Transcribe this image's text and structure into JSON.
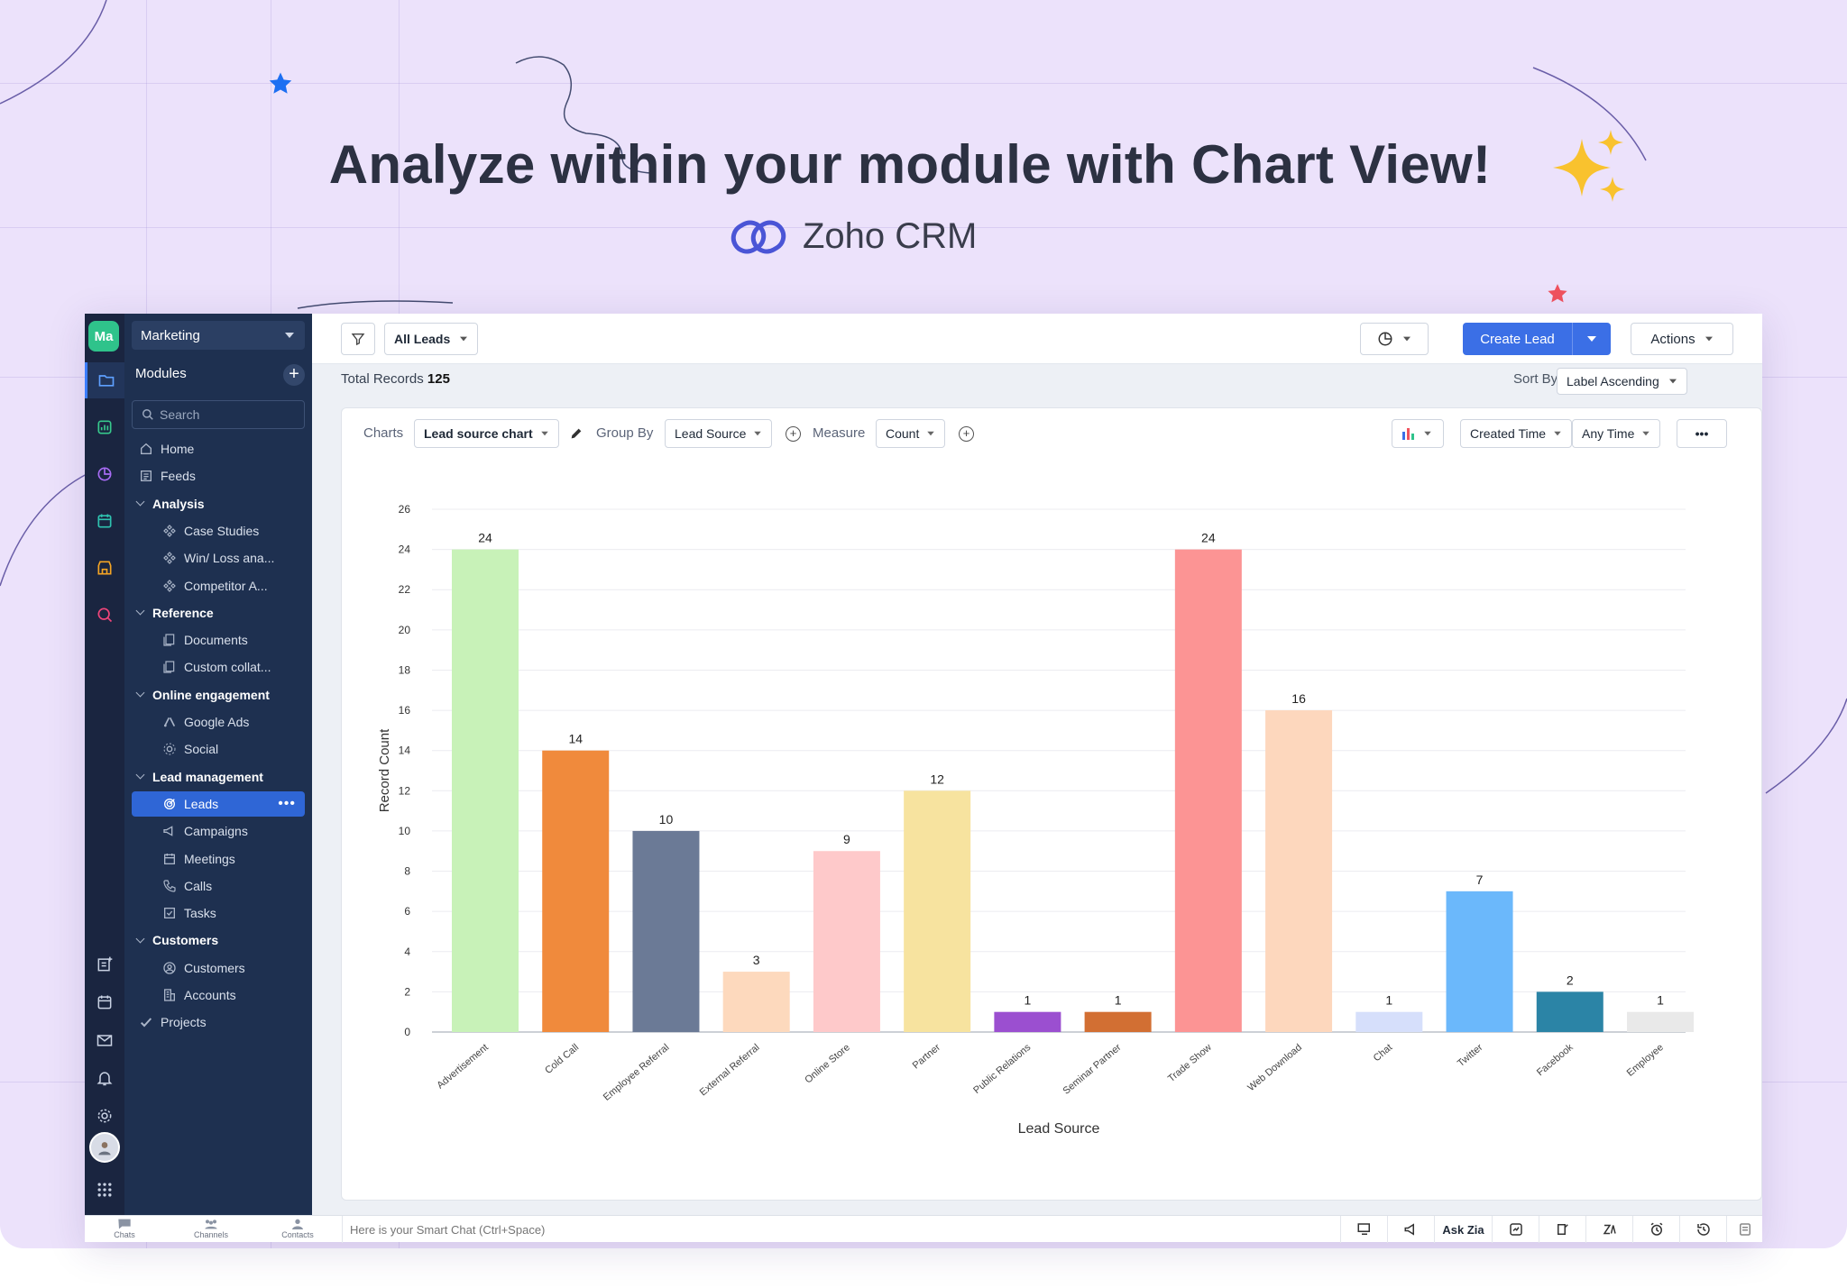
{
  "headline": "Analyze within your module with Chart View!",
  "brand": {
    "name": "Zoho CRM"
  },
  "workspace": {
    "avatar": "Ma",
    "name": "Marketing"
  },
  "sidebar": {
    "modules_title": "Modules",
    "search_placeholder": "Search",
    "items": [
      {
        "label": "Home",
        "kind": "top",
        "icon": "home-icon"
      },
      {
        "label": "Feeds",
        "kind": "top",
        "icon": "feeds-icon"
      },
      {
        "label": "Analysis",
        "kind": "sec"
      },
      {
        "label": "Case Studies",
        "kind": "sub",
        "icon": "diamond-nodes-icon"
      },
      {
        "label": "Win/ Loss ana...",
        "kind": "sub",
        "icon": "diamond-nodes-icon"
      },
      {
        "label": "Competitor A...",
        "kind": "sub",
        "icon": "diamond-nodes-icon"
      },
      {
        "label": "Reference",
        "kind": "sec"
      },
      {
        "label": "Documents",
        "kind": "sub",
        "icon": "documents-icon"
      },
      {
        "label": "Custom collat...",
        "kind": "sub",
        "icon": "documents-icon"
      },
      {
        "label": "Online engagement",
        "kind": "sec"
      },
      {
        "label": "Google Ads",
        "kind": "sub",
        "icon": "google-ads-icon"
      },
      {
        "label": "Social",
        "kind": "sub",
        "icon": "social-icon"
      },
      {
        "label": "Lead management",
        "kind": "sec"
      },
      {
        "label": "Leads",
        "kind": "sub",
        "icon": "leads-icon",
        "active": true
      },
      {
        "label": "Campaigns",
        "kind": "sub",
        "icon": "megaphone-icon"
      },
      {
        "label": "Meetings",
        "kind": "sub",
        "icon": "calendar-icon"
      },
      {
        "label": "Calls",
        "kind": "sub",
        "icon": "phone-icon"
      },
      {
        "label": "Tasks",
        "kind": "sub",
        "icon": "task-icon"
      },
      {
        "label": "Customers",
        "kind": "sec"
      },
      {
        "label": "Customers",
        "kind": "sub",
        "icon": "customer-icon"
      },
      {
        "label": "Accounts",
        "kind": "sub",
        "icon": "building-icon"
      },
      {
        "label": "Projects",
        "kind": "top",
        "icon": "projects-icon"
      }
    ]
  },
  "toolbar": {
    "view_select": "All Leads",
    "create_label": "Create Lead",
    "actions_label": "Actions"
  },
  "records": {
    "total_label": "Total Records",
    "total": "125"
  },
  "sort": {
    "label": "Sort By",
    "value": "Label Ascending"
  },
  "chart_controls": {
    "charts_label": "Charts",
    "chart_select": "Lead source chart",
    "group_by_label": "Group By",
    "group_by_value": "Lead Source",
    "measure_label": "Measure",
    "measure_value": "Count",
    "time_field": "Created Time",
    "time_range": "Any Time",
    "more": "•••"
  },
  "chart_data": {
    "type": "bar",
    "xlabel": "Lead Source",
    "ylabel": "Record Count",
    "ylim": [
      0,
      26
    ],
    "yticks": [
      0,
      2,
      4,
      6,
      8,
      10,
      12,
      14,
      16,
      18,
      20,
      22,
      24,
      26
    ],
    "grid": true,
    "categories": [
      "Advertisement",
      "Cold Call",
      "Employee Referral",
      "External Referral",
      "Online Store",
      "Partner",
      "Public Relations",
      "Seminar Partner",
      "Trade Show",
      "Web Download",
      "Chat",
      "Twitter",
      "Facebook",
      "Employee"
    ],
    "values": [
      24,
      14,
      10,
      3,
      9,
      12,
      1,
      1,
      24,
      16,
      1,
      7,
      2,
      1
    ],
    "colors": [
      "#c8f2b8",
      "#f08a3c",
      "#6b7a96",
      "#fdd9bd",
      "#fec9ca",
      "#f7e39f",
      "#9b4fd0",
      "#d26f33",
      "#fc9494",
      "#fdd7bd",
      "#d6dffb",
      "#6bb8fb",
      "#2b84a6",
      "#e9e9e9"
    ]
  },
  "bottom": {
    "chats": "Chats",
    "channels": "Channels",
    "contacts": "Contacts",
    "smartchat_placeholder": "Here is your Smart Chat (Ctrl+Space)",
    "ask_zia": "Ask Zia"
  }
}
